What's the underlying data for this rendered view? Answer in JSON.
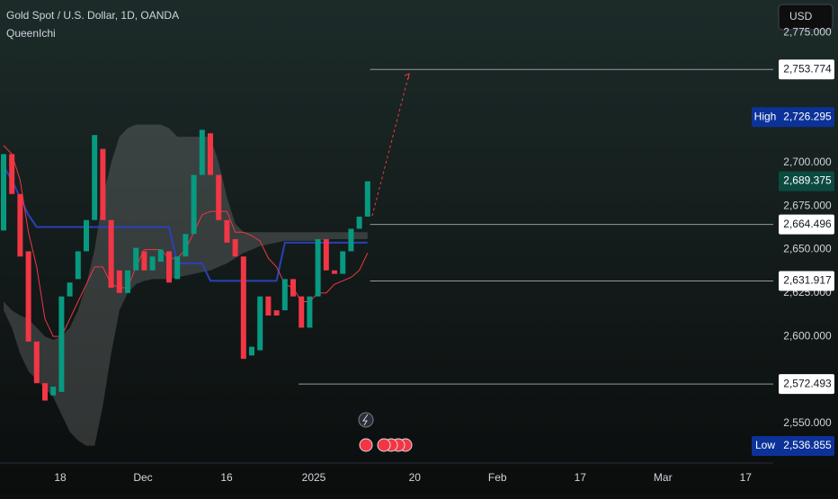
{
  "chart_data": {
    "type": "candlestick",
    "title": "Gold Spot / U.S. Dollar, 1D, OANDA",
    "subtitle": "QueenIchi",
    "currency": "USD",
    "up_color": "#089981",
    "down_color": "#f23645",
    "open": [
      2661,
      2705,
      2682,
      2649,
      2597,
      2573,
      2566,
      2568,
      2623,
      2633,
      2649,
      2667,
      2708,
      2667,
      2638,
      2625,
      2638,
      2649,
      2638,
      2643,
      2649,
      2633,
      2646,
      2659,
      2693,
      2717,
      2693,
      2667,
      2656,
      2646,
      2589,
      2592,
      2623,
      2615,
      2615,
      2633,
      2623,
      2605,
      2623,
      2656,
      2638,
      2636,
      2649,
      2662,
      2669
    ],
    "high": {
      "name": "High",
      "value": 2726.295,
      "label": "2,726.295"
    },
    "low": {
      "name": "Low",
      "value": 2536.855,
      "label": "2,536.855"
    },
    "close": [
      2705,
      2682,
      2646,
      2597,
      2573,
      2563,
      2571,
      2623,
      2631,
      2649,
      2667,
      2716,
      2667,
      2628,
      2625,
      2638,
      2651,
      2638,
      2646,
      2650,
      2631,
      2646,
      2659,
      2693,
      2719,
      2693,
      2667,
      2654,
      2646,
      2587,
      2594,
      2623,
      2612,
      2612,
      2633,
      2623,
      2605,
      2623,
      2656,
      2638,
      2636,
      2649,
      2662,
      2669,
      2689.375
    ],
    "cloud_upper": [
      2620,
      2615,
      2612,
      2610,
      2605,
      2600,
      2598,
      2600,
      2605,
      2615,
      2630,
      2650,
      2680,
      2700,
      2715,
      2720,
      2722,
      2722,
      2722,
      2722,
      2720,
      2715,
      2715,
      2715,
      2715,
      2715,
      2700,
      2680,
      2665,
      2660,
      2660,
      2660,
      2660,
      2660,
      2660,
      2660,
      2660,
      2660,
      2660,
      2660,
      2660,
      2660,
      2660,
      2660,
      2660
    ],
    "cloud_lower": [
      2615,
      2605,
      2590,
      2580,
      2575,
      2570,
      2565,
      2555,
      2545,
      2540,
      2537,
      2537,
      2560,
      2590,
      2615,
      2625,
      2630,
      2632,
      2633,
      2633,
      2633,
      2634,
      2635,
      2636,
      2637,
      2638,
      2640,
      2642,
      2645,
      2648,
      2650,
      2652,
      2653,
      2654,
      2655,
      2655,
      2655,
      2655,
      2655,
      2656,
      2656,
      2656,
      2656,
      2656,
      2656
    ],
    "base_line": {
      "color": "#2941b8",
      "values": [
        2698,
        2690,
        2680,
        2670,
        2663,
        2663,
        2663,
        2663,
        2663,
        2663,
        2663,
        2663,
        2663,
        2663,
        2663,
        2663,
        2663,
        2663,
        2663,
        2663,
        2663,
        2642,
        2642,
        2642,
        2642,
        2632,
        2632,
        2632,
        2632,
        2632,
        2632,
        2632,
        2632,
        2632,
        2654,
        2654,
        2654,
        2654,
        2654,
        2654,
        2654,
        2654,
        2654,
        2654,
        2654
      ]
    },
    "conversion_line": {
      "color": "#f23645",
      "values": [
        2710,
        2705,
        2690,
        2660,
        2640,
        2610,
        2600,
        2600,
        2610,
        2620,
        2630,
        2640,
        2640,
        2630,
        2628,
        2628,
        2640,
        2650,
        2650,
        2650,
        2645,
        2645,
        2650,
        2660,
        2670,
        2672,
        2672,
        2672,
        2660,
        2660,
        2658,
        2655,
        2645,
        2640,
        2630,
        2628,
        2620,
        2620,
        2625,
        2625,
        2630,
        2632,
        2634,
        2638,
        2648
      ]
    },
    "xlim": [
      -0.435,
      93.04
    ],
    "xticks": [
      {
        "value": 6.85,
        "label": "18"
      },
      {
        "value": 16.85,
        "label": "Dec"
      },
      {
        "value": 26.96,
        "label": "16"
      },
      {
        "value": 37.5,
        "label": "2025"
      },
      {
        "value": 49.7,
        "label": "20"
      },
      {
        "value": 59.7,
        "label": "Feb"
      },
      {
        "value": 69.7,
        "label": "17"
      },
      {
        "value": 79.7,
        "label": "Mar"
      },
      {
        "value": 89.7,
        "label": "17"
      }
    ],
    "ylim": [
      2527.0,
      2793.8
    ],
    "yticks": [
      {
        "value": 2775,
        "label": "2,775.000"
      },
      {
        "value": 2700,
        "label": "2,700.000"
      },
      {
        "value": 2675,
        "label": "2,675.000"
      },
      {
        "value": 2650,
        "label": "2,650.000"
      },
      {
        "value": 2625,
        "label": "2,625.000"
      },
      {
        "value": 2600,
        "label": "2,600.000"
      },
      {
        "value": 2550,
        "label": "2,550.000"
      }
    ],
    "levels": [
      {
        "value": 2753.774,
        "label": "2,753.774",
        "start": 44.3
      },
      {
        "value": 2664.496,
        "label": "2,664.496",
        "start": 44.3
      },
      {
        "value": 2631.917,
        "label": "2,631.917",
        "start": 44.3
      },
      {
        "value": 2572.493,
        "label": "2,572.493",
        "start": 35.65
      }
    ],
    "last": {
      "value": 2689.375,
      "label": "2,689.375"
    }
  }
}
